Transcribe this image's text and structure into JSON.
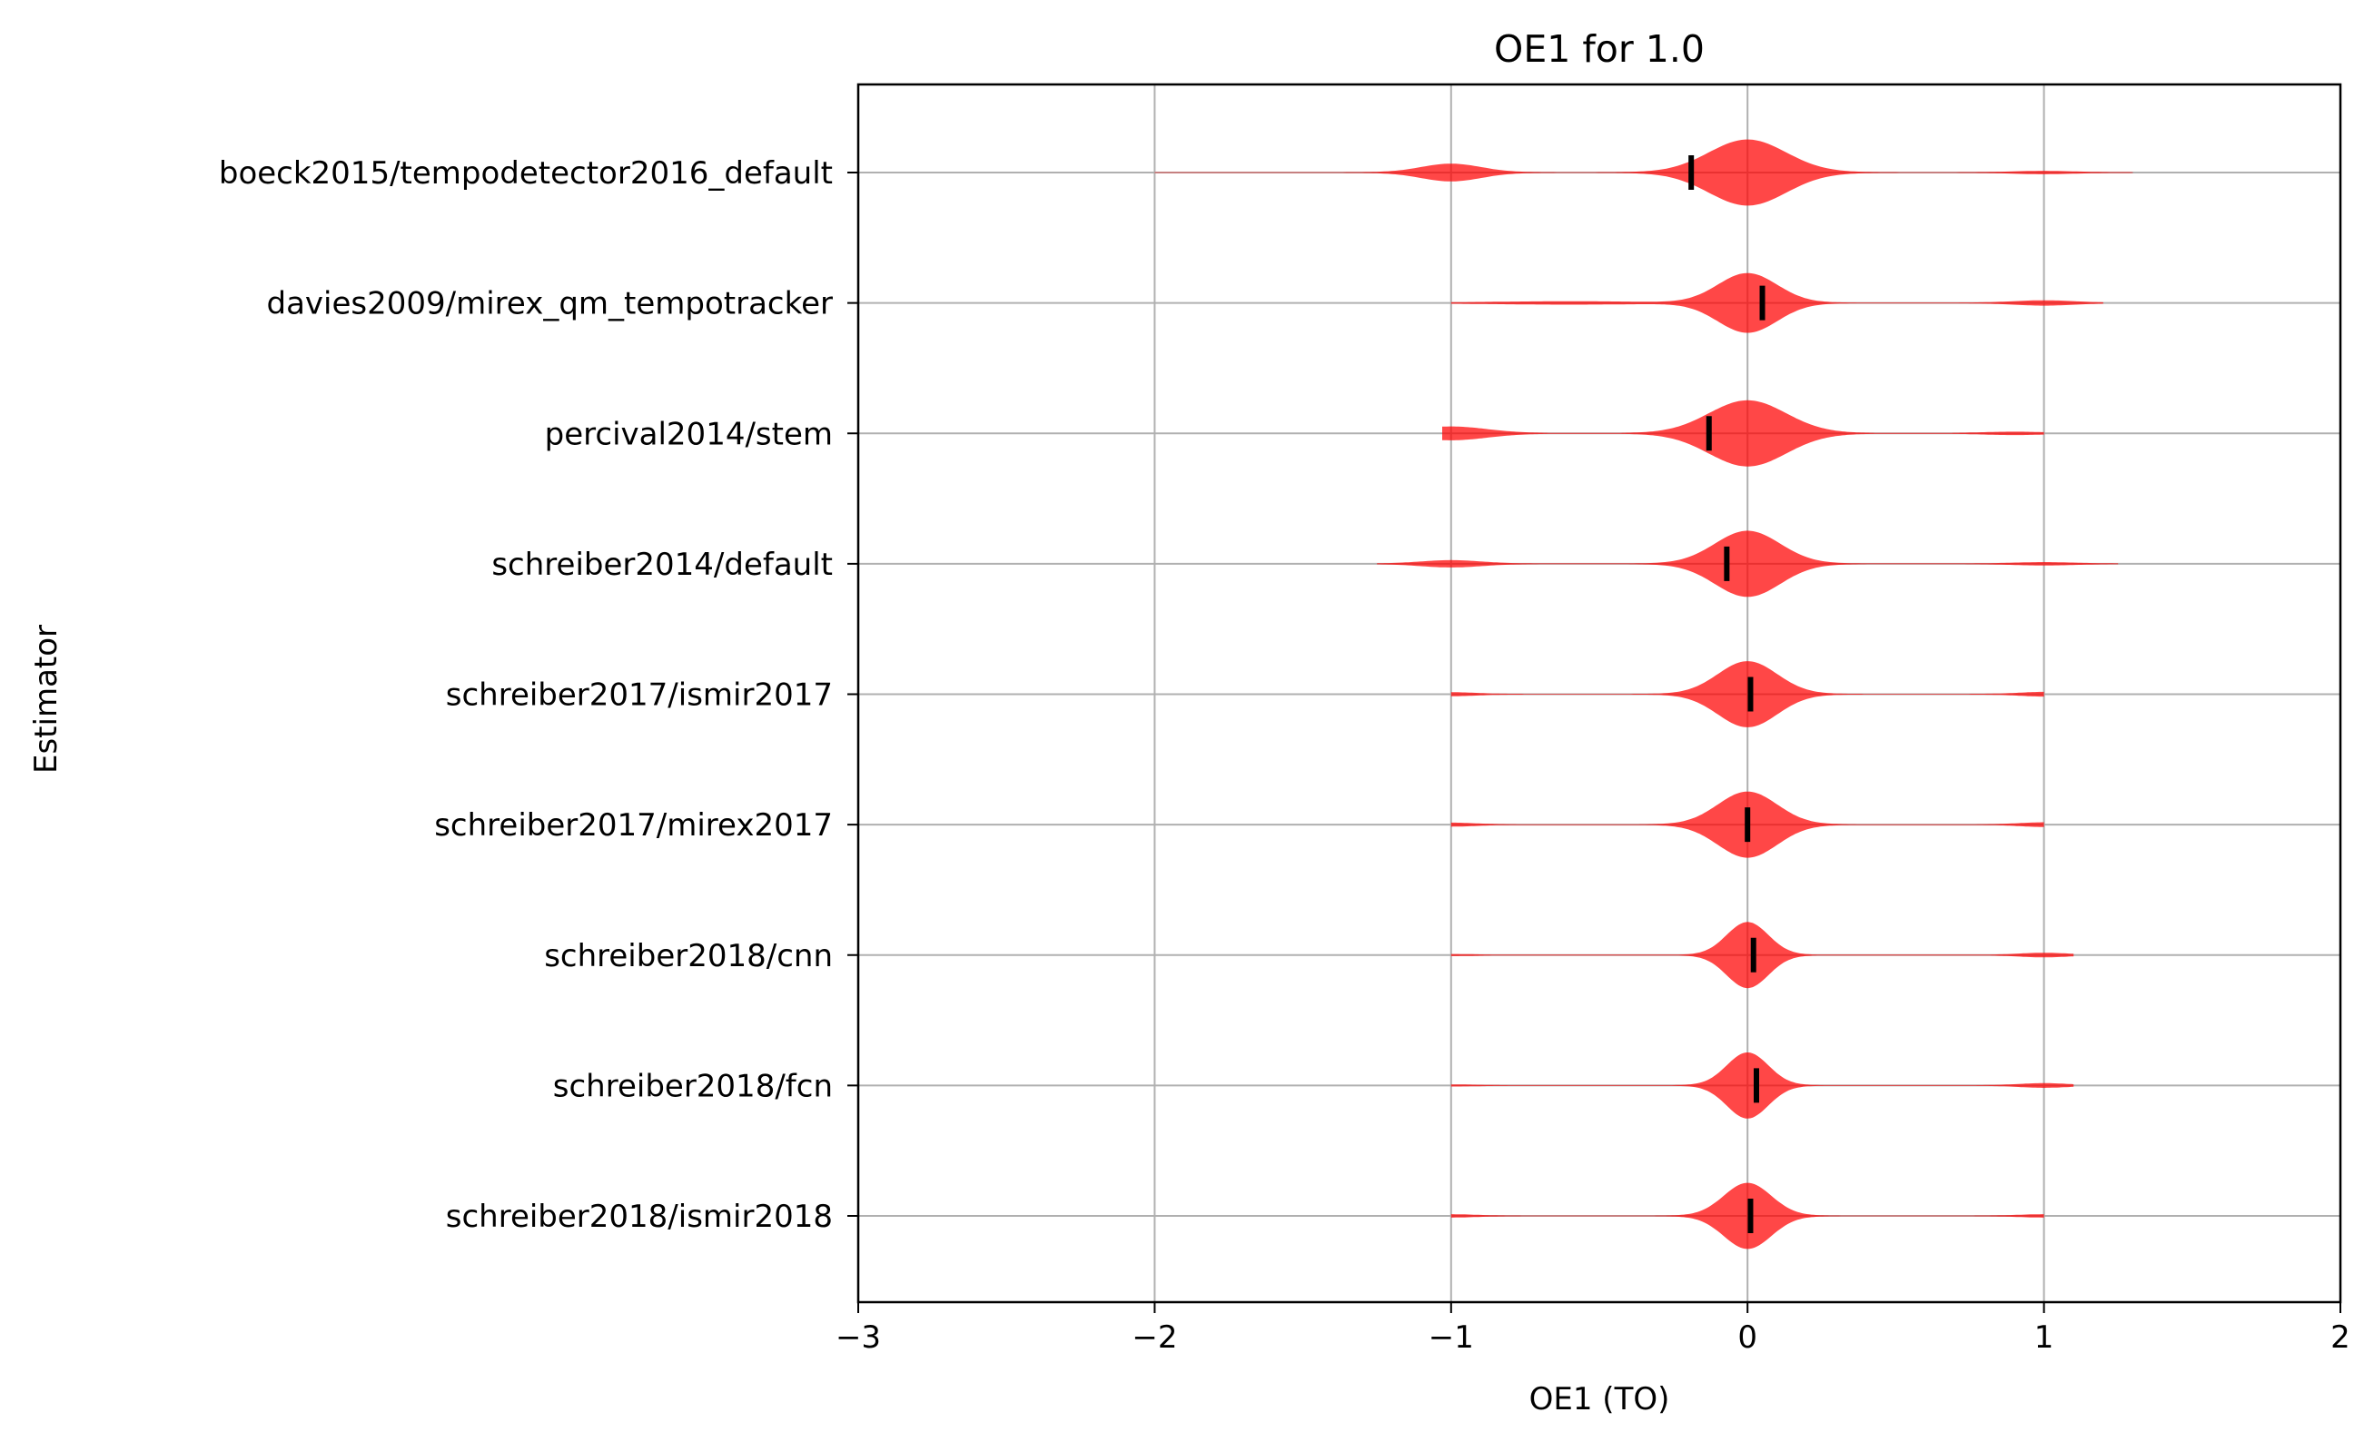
{
  "chart_data": {
    "type": "violin",
    "title": "OE1 for 1.0",
    "xlabel": "OE1 (TO)",
    "ylabel": "Estimator",
    "xlim": [
      -3,
      2
    ],
    "xticks": [
      -3,
      -2,
      -1,
      0,
      1,
      2
    ],
    "xtick_labels": [
      "−3",
      "−2",
      "−1",
      "0",
      "1",
      "2"
    ],
    "grid": true,
    "violin_color": "#ff0000",
    "median_color": "#000000",
    "categories": [
      "boeck2015/tempodetector2016_default",
      "davies2009/mirex_qm_tempotracker",
      "percival2014/stem",
      "schreiber2014/default",
      "schreiber2017/ismir2017",
      "schreiber2017/mirex2017",
      "schreiber2018/cnn",
      "schreiber2018/fcn",
      "schreiber2018/ismir2018"
    ],
    "series": [
      {
        "range": [
          -2.0,
          1.3
        ],
        "median": -0.19,
        "modes": [
          {
            "center": 0.0,
            "sigma": 0.13,
            "height": 1.0
          },
          {
            "center": -1.0,
            "sigma": 0.1,
            "height": 0.26
          },
          {
            "center": 1.0,
            "sigma": 0.1,
            "height": 0.04
          }
        ]
      },
      {
        "range": [
          -1.0,
          1.2
        ],
        "median": 0.05,
        "modes": [
          {
            "center": 0.0,
            "sigma": 0.1,
            "height": 0.9
          },
          {
            "center": 1.0,
            "sigma": 0.1,
            "height": 0.07
          },
          {
            "center": -0.6,
            "sigma": 0.25,
            "height": 0.04
          }
        ]
      },
      {
        "range": [
          -1.03,
          1.0
        ],
        "median": -0.13,
        "modes": [
          {
            "center": 0.0,
            "sigma": 0.13,
            "height": 1.0
          },
          {
            "center": -1.0,
            "sigma": 0.12,
            "height": 0.2
          },
          {
            "center": 0.9,
            "sigma": 0.1,
            "height": 0.04
          }
        ]
      },
      {
        "range": [
          -1.25,
          1.25
        ],
        "median": -0.07,
        "modes": [
          {
            "center": 0.0,
            "sigma": 0.11,
            "height": 1.0
          },
          {
            "center": -1.0,
            "sigma": 0.1,
            "height": 0.1
          },
          {
            "center": 1.0,
            "sigma": 0.1,
            "height": 0.04
          }
        ]
      },
      {
        "range": [
          -1.0,
          1.0
        ],
        "median": 0.01,
        "modes": [
          {
            "center": 0.0,
            "sigma": 0.1,
            "height": 1.0
          },
          {
            "center": -1.0,
            "sigma": 0.08,
            "height": 0.05
          },
          {
            "center": 1.0,
            "sigma": 0.08,
            "height": 0.06
          }
        ]
      },
      {
        "range": [
          -1.0,
          1.0
        ],
        "median": 0.0,
        "modes": [
          {
            "center": 0.0,
            "sigma": 0.1,
            "height": 1.0
          },
          {
            "center": -1.0,
            "sigma": 0.08,
            "height": 0.05
          },
          {
            "center": 1.0,
            "sigma": 0.08,
            "height": 0.06
          }
        ]
      },
      {
        "range": [
          -1.0,
          1.1
        ],
        "median": 0.02,
        "modes": [
          {
            "center": 0.0,
            "sigma": 0.07,
            "height": 1.0
          },
          {
            "center": 1.0,
            "sigma": 0.08,
            "height": 0.06
          },
          {
            "center": -1.0,
            "sigma": 0.08,
            "height": 0.02
          }
        ]
      },
      {
        "range": [
          -1.0,
          1.1
        ],
        "median": 0.03,
        "modes": [
          {
            "center": 0.0,
            "sigma": 0.07,
            "height": 1.0
          },
          {
            "center": 1.0,
            "sigma": 0.08,
            "height": 0.06
          },
          {
            "center": -1.0,
            "sigma": 0.08,
            "height": 0.02
          }
        ]
      },
      {
        "range": [
          -1.0,
          1.0
        ],
        "median": 0.01,
        "modes": [
          {
            "center": 0.0,
            "sigma": 0.08,
            "height": 1.0
          },
          {
            "center": 1.0,
            "sigma": 0.08,
            "height": 0.04
          },
          {
            "center": -1.0,
            "sigma": 0.08,
            "height": 0.04
          }
        ]
      }
    ]
  }
}
